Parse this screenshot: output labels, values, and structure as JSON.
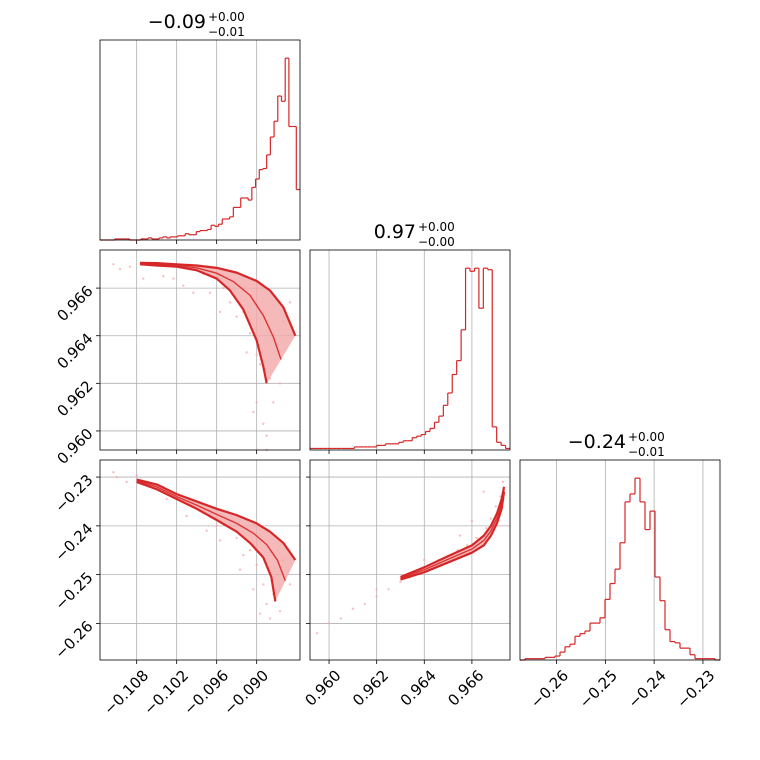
{
  "chart_data": {
    "type": "corner",
    "color": "#d62728",
    "fill_color": "#f4a7a8",
    "grid": true,
    "parameters": [
      {
        "range": [
          -0.1135,
          -0.0835
        ],
        "ticks": [
          -0.108,
          -0.102,
          -0.096,
          -0.09
        ],
        "tick_labels": [
          "−0.108",
          "−0.102",
          "−0.096",
          "−0.090"
        ],
        "title": {
          "value": "−0.09",
          "plus": "+0.00",
          "minus": "−0.01"
        }
      },
      {
        "range": [
          0.9592,
          0.9676
        ],
        "ticks": [
          0.96,
          0.962,
          0.964,
          0.966
        ],
        "tick_labels": [
          "0.960",
          "0.962",
          "0.964",
          "0.966"
        ],
        "title": {
          "value": "0.97",
          "plus": "+0.00",
          "minus": "−0.00"
        }
      },
      {
        "range": [
          -0.2675,
          -0.2265
        ],
        "ticks": [
          -0.26,
          -0.25,
          -0.24,
          -0.23
        ],
        "tick_labels": [
          "−0.26",
          "−0.25",
          "−0.24",
          "−0.23"
        ],
        "title": {
          "value": "−0.24",
          "plus": "+0.00",
          "minus": "−0.01"
        }
      }
    ],
    "histograms": [
      {
        "bins": [
          -0.1135,
          -0.0835
        ],
        "counts": [
          0,
          0,
          0,
          0,
          1,
          1,
          1,
          1,
          0,
          0,
          0,
          1,
          1,
          2,
          1,
          1,
          2,
          3,
          2,
          3,
          3,
          4,
          4,
          6,
          5,
          5,
          8,
          9,
          9,
          10,
          14,
          13,
          15,
          20,
          20,
          22,
          31,
          31,
          40,
          40,
          38,
          50,
          58,
          67,
          68,
          81,
          98,
          113,
          137,
          132,
          173,
          108,
          108,
          48
        ]
      },
      {
        "bins": [
          0.9592,
          0.9676
        ],
        "counts": [
          1,
          1,
          1,
          1,
          1,
          1,
          1,
          1,
          1,
          1,
          2,
          2,
          2,
          2,
          2,
          3,
          3,
          4,
          4,
          4,
          5,
          6,
          6,
          8,
          9,
          10,
          12,
          14,
          18,
          22,
          29,
          37,
          49,
          58,
          78,
          118,
          116,
          118,
          92,
          118,
          117,
          15,
          5,
          3,
          1
        ]
      },
      {
        "bins": [
          -0.2675,
          -0.2265
        ],
        "counts": [
          0,
          1,
          1,
          1,
          1,
          2,
          2,
          3,
          6,
          10,
          12,
          18,
          20,
          22,
          28,
          28,
          32,
          46,
          58,
          69,
          89,
          120,
          126,
          138,
          120,
          99,
          113,
          63,
          45,
          23,
          14,
          13,
          9,
          9,
          4,
          1,
          1,
          1,
          1,
          0
        ]
      }
    ],
    "pairs": [
      {
        "x_param": 0,
        "y_param": 1,
        "curve_upper": [
          [
            -0.1075,
            0.96706
          ],
          [
            -0.105,
            0.96705
          ],
          [
            -0.102,
            0.967
          ],
          [
            -0.099,
            0.96695
          ],
          [
            -0.096,
            0.96685
          ],
          [
            -0.093,
            0.96665
          ],
          [
            -0.09,
            0.9663
          ],
          [
            -0.088,
            0.9659
          ],
          [
            -0.086,
            0.9652
          ],
          [
            -0.0842,
            0.964
          ]
        ],
        "curve_lower": [
          [
            -0.1075,
            0.967
          ],
          [
            -0.105,
            0.96695
          ],
          [
            -0.102,
            0.9669
          ],
          [
            -0.099,
            0.96675
          ],
          [
            -0.096,
            0.9664
          ],
          [
            -0.094,
            0.9659
          ],
          [
            -0.092,
            0.9651
          ],
          [
            -0.09,
            0.9638
          ],
          [
            -0.089,
            0.9627
          ],
          [
            -0.0885,
            0.962
          ]
        ],
        "scatter": [
          [
            -0.1115,
            0.967
          ],
          [
            -0.1105,
            0.9668
          ],
          [
            -0.109,
            0.9669
          ],
          [
            -0.107,
            0.9664
          ],
          [
            -0.104,
            0.9665
          ],
          [
            -0.101,
            0.9661
          ],
          [
            -0.098,
            0.9666
          ],
          [
            -0.097,
            0.9658
          ],
          [
            -0.095,
            0.966
          ],
          [
            -0.094,
            0.9654
          ],
          [
            -0.093,
            0.9648
          ],
          [
            -0.092,
            0.965
          ],
          [
            -0.091,
            0.9641
          ],
          [
            -0.09,
            0.9632
          ],
          [
            -0.09,
            0.9612
          ],
          [
            -0.089,
            0.9603
          ],
          [
            -0.0885,
            0.9598
          ],
          [
            -0.088,
            0.9622
          ],
          [
            -0.087,
            0.9637
          ],
          [
            -0.086,
            0.9646
          ],
          [
            -0.0875,
            0.9612
          ],
          [
            -0.0865,
            0.962
          ],
          [
            -0.0895,
            0.9628
          ],
          [
            -0.0915,
            0.9633
          ],
          [
            -0.0955,
            0.965
          ],
          [
            -0.0995,
            0.9658
          ],
          [
            -0.1025,
            0.9664
          ],
          [
            -0.0885,
            0.9592
          ],
          [
            -0.0905,
            0.9608
          ],
          [
            -0.085,
            0.9654
          ]
        ]
      },
      {
        "x_param": 0,
        "y_param": 2,
        "curve_upper": [
          [
            -0.108,
            -0.2305
          ],
          [
            -0.105,
            -0.2315
          ],
          [
            -0.102,
            -0.2335
          ],
          [
            -0.099,
            -0.235
          ],
          [
            -0.096,
            -0.2365
          ],
          [
            -0.093,
            -0.2378
          ],
          [
            -0.09,
            -0.2395
          ],
          [
            -0.088,
            -0.2412
          ],
          [
            -0.086,
            -0.2435
          ],
          [
            -0.0842,
            -0.247
          ]
        ],
        "curve_lower": [
          [
            -0.108,
            -0.231
          ],
          [
            -0.105,
            -0.2325
          ],
          [
            -0.102,
            -0.2345
          ],
          [
            -0.099,
            -0.2365
          ],
          [
            -0.096,
            -0.2388
          ],
          [
            -0.093,
            -0.2412
          ],
          [
            -0.091,
            -0.2435
          ],
          [
            -0.089,
            -0.2465
          ],
          [
            -0.0878,
            -0.2505
          ],
          [
            -0.0872,
            -0.2555
          ]
        ],
        "scatter": [
          [
            -0.1115,
            -0.229
          ],
          [
            -0.111,
            -0.23
          ],
          [
            -0.1095,
            -0.231
          ],
          [
            -0.108,
            -0.2296
          ],
          [
            -0.104,
            -0.232
          ],
          [
            -0.101,
            -0.235
          ],
          [
            -0.098,
            -0.237
          ],
          [
            -0.096,
            -0.24
          ],
          [
            -0.094,
            -0.2395
          ],
          [
            -0.093,
            -0.2425
          ],
          [
            -0.092,
            -0.246
          ],
          [
            -0.091,
            -0.245
          ],
          [
            -0.09,
            -0.248
          ],
          [
            -0.089,
            -0.252
          ],
          [
            -0.0885,
            -0.256
          ],
          [
            -0.088,
            -0.259
          ],
          [
            -0.0875,
            -0.254
          ],
          [
            -0.087,
            -0.25
          ],
          [
            -0.086,
            -0.247
          ],
          [
            -0.0895,
            -0.258
          ],
          [
            -0.0905,
            -0.253
          ],
          [
            -0.0925,
            -0.249
          ],
          [
            -0.0955,
            -0.243
          ],
          [
            -0.0975,
            -0.241
          ],
          [
            -0.1005,
            -0.238
          ],
          [
            -0.1035,
            -0.2345
          ],
          [
            -0.085,
            -0.252
          ],
          [
            -0.0865,
            -0.2575
          ]
        ]
      },
      {
        "x_param": 1,
        "y_param": 2,
        "curve_upper": [
          [
            0.963,
            -0.2505
          ],
          [
            0.964,
            -0.2485
          ],
          [
            0.965,
            -0.2462
          ],
          [
            0.966,
            -0.244
          ],
          [
            0.9665,
            -0.242
          ],
          [
            0.9668,
            -0.24
          ],
          [
            0.96705,
            -0.2375
          ],
          [
            0.96725,
            -0.2345
          ],
          [
            0.96735,
            -0.232
          ]
        ],
        "curve_lower": [
          [
            0.963,
            -0.251
          ],
          [
            0.964,
            -0.2495
          ],
          [
            0.965,
            -0.2475
          ],
          [
            0.966,
            -0.2455
          ],
          [
            0.9665,
            -0.244
          ],
          [
            0.9668,
            -0.242
          ],
          [
            0.96705,
            -0.2395
          ],
          [
            0.96725,
            -0.2365
          ],
          [
            0.96735,
            -0.233
          ]
        ],
        "scatter": [
          [
            0.9595,
            -0.262
          ],
          [
            0.96,
            -0.26
          ],
          [
            0.9605,
            -0.259
          ],
          [
            0.961,
            -0.257
          ],
          [
            0.9615,
            -0.256
          ],
          [
            0.962,
            -0.2545
          ],
          [
            0.9625,
            -0.253
          ],
          [
            0.963,
            -0.2515
          ],
          [
            0.9634,
            -0.2505
          ],
          [
            0.9638,
            -0.249
          ],
          [
            0.9642,
            -0.2485
          ],
          [
            0.9646,
            -0.247
          ],
          [
            0.965,
            -0.2465
          ],
          [
            0.9654,
            -0.245
          ],
          [
            0.9658,
            -0.244
          ],
          [
            0.9662,
            -0.2425
          ],
          [
            0.9666,
            -0.2405
          ],
          [
            0.9668,
            -0.2385
          ],
          [
            0.967,
            -0.236
          ],
          [
            0.9672,
            -0.234
          ],
          [
            0.9665,
            -0.233
          ],
          [
            0.966,
            -0.239
          ],
          [
            0.9655,
            -0.242
          ],
          [
            0.9673,
            -0.231
          ],
          [
            0.964,
            -0.247
          ],
          [
            0.962,
            -0.253
          ]
        ]
      }
    ]
  }
}
